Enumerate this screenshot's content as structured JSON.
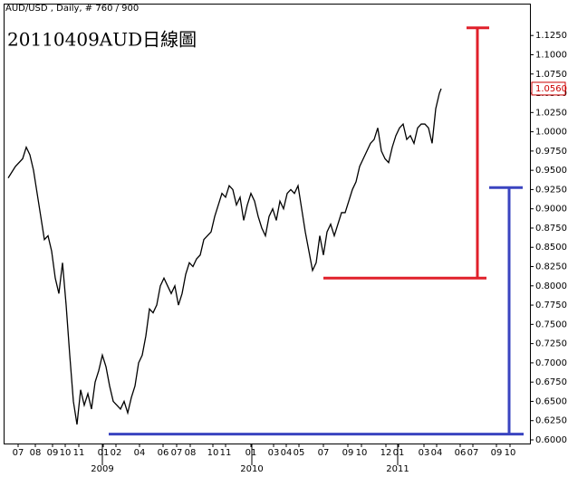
{
  "chart_data": {
    "type": "line",
    "header": "AUD/USD , Daily, # 760 / 900",
    "title": "20110409AUD日線圖",
    "current_price": {
      "value": 1.056,
      "label": "1.0560",
      "color": "#cc0000"
    },
    "xlim": [
      0,
      145
    ],
    "ylim": [
      0.5953,
      1.1652
    ],
    "yticks": [
      {
        "value": 0.6,
        "label": "0.6000"
      },
      {
        "value": 0.625,
        "label": "0.6250"
      },
      {
        "value": 0.65,
        "label": "0.6500"
      },
      {
        "value": 0.675,
        "label": "0.6750"
      },
      {
        "value": 0.7,
        "label": "0.7000"
      },
      {
        "value": 0.725,
        "label": "0.7250"
      },
      {
        "value": 0.75,
        "label": "0.7500"
      },
      {
        "value": 0.775,
        "label": "0.7750"
      },
      {
        "value": 0.8,
        "label": "0.8000"
      },
      {
        "value": 0.825,
        "label": "0.8250"
      },
      {
        "value": 0.85,
        "label": "0.8500"
      },
      {
        "value": 0.875,
        "label": "0.8750"
      },
      {
        "value": 0.9,
        "label": "0.9000"
      },
      {
        "value": 0.925,
        "label": "0.9250"
      },
      {
        "value": 0.95,
        "label": "0.9500"
      },
      {
        "value": 0.975,
        "label": "0.9750"
      },
      {
        "value": 1,
        "label": "1.0000"
      },
      {
        "value": 1.025,
        "label": "1.0250"
      },
      {
        "value": 1.05,
        "label": "1.0500"
      },
      {
        "value": 1.075,
        "label": "1.0750"
      },
      {
        "value": 1.1,
        "label": "1.1000"
      },
      {
        "value": 1.125,
        "label": "1.1250"
      }
    ],
    "xticks": [
      {
        "value": 3.75,
        "label": "07"
      },
      {
        "value": 8.5,
        "label": "08"
      },
      {
        "value": 13.25,
        "label": "09"
      },
      {
        "value": 16.75,
        "label": "10"
      },
      {
        "value": 20.5,
        "label": "11"
      },
      {
        "value": 27.25,
        "label": "01"
      },
      {
        "value": 30.75,
        "label": "02"
      },
      {
        "value": 37.25,
        "label": "04"
      },
      {
        "value": 43.75,
        "label": "06"
      },
      {
        "value": 47.5,
        "label": "07"
      },
      {
        "value": 51.25,
        "label": "08"
      },
      {
        "value": 57.5,
        "label": "10"
      },
      {
        "value": 61,
        "label": "11"
      },
      {
        "value": 68,
        "label": "01"
      },
      {
        "value": 74.25,
        "label": "03"
      },
      {
        "value": 77.75,
        "label": "04"
      },
      {
        "value": 81.25,
        "label": "05"
      },
      {
        "value": 88,
        "label": "07"
      },
      {
        "value": 94.75,
        "label": "09"
      },
      {
        "value": 98.5,
        "label": "10"
      },
      {
        "value": 105.25,
        "label": "12"
      },
      {
        "value": 108.75,
        "label": "01"
      },
      {
        "value": 115.75,
        "label": "03"
      },
      {
        "value": 119.25,
        "label": "04"
      },
      {
        "value": 125.75,
        "label": "06"
      },
      {
        "value": 129.25,
        "label": "07"
      },
      {
        "value": 135.75,
        "label": "09"
      },
      {
        "value": 139.5,
        "label": "10"
      }
    ],
    "year_labels": [
      {
        "value": 27,
        "label": "2009"
      },
      {
        "value": 68.25,
        "label": "2010"
      },
      {
        "value": 108.5,
        "label": "2011"
      }
    ],
    "series": [
      {
        "color": "#000000",
        "x": [
          1,
          3,
          5,
          6,
          7,
          8,
          9,
          10,
          11,
          12,
          13,
          14,
          15,
          16,
          17,
          18,
          19,
          20,
          21,
          22,
          23,
          24,
          25,
          26,
          27,
          28,
          29,
          30,
          31,
          32,
          33,
          34,
          35,
          36,
          37,
          38,
          39,
          40,
          41,
          42,
          43,
          44,
          45,
          46,
          47,
          48,
          49,
          50,
          51,
          52,
          53,
          54,
          55,
          56,
          57,
          58,
          59,
          60,
          61,
          62,
          63,
          64,
          65,
          66,
          67,
          68,
          69,
          70,
          71,
          72,
          73,
          74,
          75,
          76,
          77,
          78,
          79,
          80,
          81,
          82,
          83,
          84,
          85,
          86,
          87,
          88,
          89,
          90,
          91,
          92,
          93,
          94,
          95,
          96,
          97,
          98,
          99,
          100,
          101,
          102,
          103,
          104,
          105,
          106,
          107,
          108,
          109,
          110,
          111,
          112,
          113,
          114,
          115,
          116,
          117,
          118,
          119,
          120,
          120.5
        ],
        "values": [
          0.94,
          0.955,
          0.965,
          0.98,
          0.97,
          0.95,
          0.92,
          0.89,
          0.86,
          0.865,
          0.845,
          0.81,
          0.79,
          0.83,
          0.775,
          0.71,
          0.65,
          0.62,
          0.665,
          0.645,
          0.66,
          0.64,
          0.675,
          0.69,
          0.71,
          0.695,
          0.67,
          0.65,
          0.645,
          0.64,
          0.65,
          0.635,
          0.655,
          0.67,
          0.7,
          0.71,
          0.735,
          0.77,
          0.765,
          0.775,
          0.8,
          0.81,
          0.8,
          0.79,
          0.8,
          0.775,
          0.79,
          0.815,
          0.83,
          0.825,
          0.835,
          0.84,
          0.86,
          0.865,
          0.87,
          0.89,
          0.905,
          0.92,
          0.915,
          0.93,
          0.925,
          0.905,
          0.915,
          0.885,
          0.905,
          0.92,
          0.91,
          0.89,
          0.875,
          0.865,
          0.89,
          0.9,
          0.885,
          0.91,
          0.9,
          0.92,
          0.925,
          0.92,
          0.93,
          0.9,
          0.87,
          0.845,
          0.82,
          0.83,
          0.865,
          0.84,
          0.87,
          0.88,
          0.865,
          0.88,
          0.895,
          0.895,
          0.91,
          0.925,
          0.935,
          0.955,
          0.965,
          0.975,
          0.985,
          0.99,
          1.005,
          0.975,
          0.965,
          0.96,
          0.98,
          0.995,
          1.005,
          1.01,
          0.99,
          0.995,
          0.985,
          1.005,
          1.01,
          1.01,
          1.005,
          0.985,
          1.03,
          1.05,
          1.056
        ]
      }
    ],
    "brackets": [
      {
        "color": "#e0202a",
        "top": 1.135,
        "bottom": 0.81,
        "x": 130.5,
        "cap_from": 127.5,
        "cap_to": 133.75,
        "base_from": 88,
        "base_to": 133
      },
      {
        "color": "#3a44c0",
        "top": 0.9275,
        "bottom": 0.6075,
        "x": 139.25,
        "cap_from": 133.75,
        "cap_to": 143,
        "base_from": 28.75,
        "base_to": 143.25
      }
    ]
  }
}
